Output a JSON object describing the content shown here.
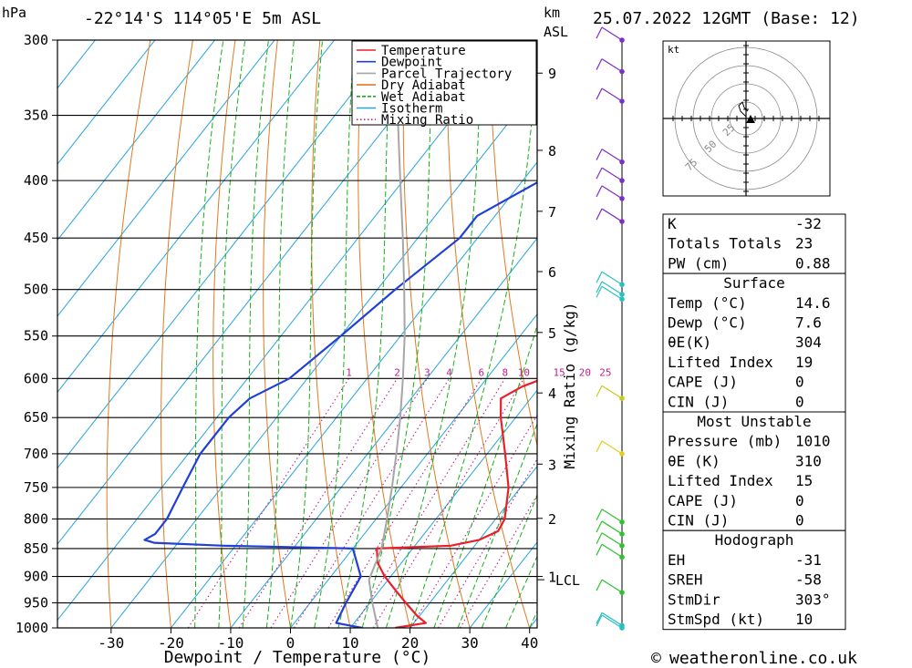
{
  "header": {
    "location": "-22°14'S 114°05'E 5m ASL",
    "datetime": "25.07.2022 12GMT (Base: 12)",
    "pressure_unit": "hPa",
    "height_unit": "km",
    "height_unit2": "ASL"
  },
  "chart_data": {
    "type": "line",
    "xlabel": "Dewpoint / Temperature (°C)",
    "ylabel_right": "Mixing Ratio (g/kg)",
    "xlim": [
      -40,
      40
    ],
    "x_ticks": [
      "-30",
      "-20",
      "-10",
      "0",
      "10",
      "20",
      "30",
      "40"
    ],
    "pressure_levels": [
      "300",
      "350",
      "400",
      "450",
      "500",
      "550",
      "600",
      "650",
      "700",
      "750",
      "800",
      "850",
      "900",
      "950",
      "1000"
    ],
    "height_ticks": [
      {
        "label": "9",
        "p": 321
      },
      {
        "label": "8",
        "p": 376
      },
      {
        "label": "7",
        "p": 426
      },
      {
        "label": "6",
        "p": 482
      },
      {
        "label": "5",
        "p": 546
      },
      {
        "label": "4",
        "p": 618
      },
      {
        "label": "3",
        "p": 715
      },
      {
        "label": "2",
        "p": 799
      },
      {
        "label": "1",
        "p": 900
      }
    ],
    "lcl_label": "LCL",
    "lcl_pressure": 906,
    "mixing_ratio_labels": [
      "1",
      "2",
      "3",
      "4",
      "6",
      "8",
      "10",
      "15",
      "20",
      "25"
    ],
    "legend": [
      {
        "name": "Temperature",
        "color": "#e8202a",
        "style": "solid"
      },
      {
        "name": "Dewpoint",
        "color": "#1f3fd6",
        "style": "solid"
      },
      {
        "name": "Parcel Trajectory",
        "color": "#a6a6a6",
        "style": "solid"
      },
      {
        "name": "Dry Adiabat",
        "color": "#e07a20",
        "style": "solid"
      },
      {
        "name": "Wet Adiabat",
        "color": "#18b018",
        "style": "dashed"
      },
      {
        "name": "Isotherm",
        "color": "#25a4e0",
        "style": "solid"
      },
      {
        "name": "Mixing Ratio",
        "color": "#c0208a",
        "style": "dotted"
      }
    ],
    "series": [
      {
        "name": "Temperature",
        "color": "#e8202a",
        "points": [
          [
            1000,
            17.5
          ],
          [
            990,
            22
          ],
          [
            975,
            19.5
          ],
          [
            950,
            16
          ],
          [
            925,
            12.5
          ],
          [
            900,
            9
          ],
          [
            875,
            6
          ],
          [
            850,
            4
          ],
          [
            845,
            16
          ],
          [
            835,
            20
          ],
          [
            820,
            22
          ],
          [
            800,
            21.5
          ],
          [
            750,
            18
          ],
          [
            700,
            13
          ],
          [
            650,
            7.5
          ],
          [
            625,
            5
          ],
          [
            610,
            7
          ],
          [
            600,
            9.5
          ],
          [
            550,
            6
          ],
          [
            500,
            0.5
          ],
          [
            450,
            -6
          ],
          [
            430,
            -7.5
          ],
          [
            400,
            -12
          ],
          [
            350,
            -22
          ],
          [
            300,
            -32
          ]
        ]
      },
      {
        "name": "Dewpoint",
        "color": "#1f3fd6",
        "points": [
          [
            1000,
            12
          ],
          [
            990,
            7
          ],
          [
            950,
            6
          ],
          [
            900,
            5
          ],
          [
            850,
            0
          ],
          [
            848,
            -8
          ],
          [
            845,
            -22
          ],
          [
            840,
            -34
          ],
          [
            835,
            -36
          ],
          [
            825,
            -35
          ],
          [
            800,
            -35
          ],
          [
            750,
            -36.5
          ],
          [
            700,
            -38
          ],
          [
            650,
            -38
          ],
          [
            625,
            -37
          ],
          [
            600,
            -33
          ],
          [
            550,
            -30
          ],
          [
            500,
            -27
          ],
          [
            450,
            -23
          ],
          [
            430,
            -23
          ],
          [
            400,
            -17
          ],
          [
            350,
            -12.5
          ],
          [
            320,
            -8
          ],
          [
            300,
            -9
          ]
        ]
      },
      {
        "name": "Parcel Trajectory",
        "color": "#a6a6a6",
        "points": [
          [
            1000,
            14.6
          ],
          [
            950,
            10.4
          ],
          [
            906,
            6.8
          ],
          [
            850,
            4.8
          ],
          [
            800,
            1.8
          ],
          [
            750,
            -1.5
          ],
          [
            700,
            -5.2
          ],
          [
            650,
            -9.3
          ],
          [
            600,
            -14
          ],
          [
            550,
            -19.3
          ],
          [
            500,
            -25.5
          ],
          [
            450,
            -32.5
          ],
          [
            400,
            -40.5
          ],
          [
            350,
            -49.5
          ],
          [
            300,
            -60
          ]
        ]
      }
    ]
  },
  "wind": {
    "barb_points": [
      {
        "p": 300,
        "color": "#7a2fc8"
      },
      {
        "p": 320,
        "color": "#7a2fc8"
      },
      {
        "p": 340,
        "color": "#7a2fc8"
      },
      {
        "p": 385,
        "color": "#7a2fc8"
      },
      {
        "p": 400,
        "color": "#7a2fc8"
      },
      {
        "p": 415,
        "color": "#7a2fc8"
      },
      {
        "p": 435,
        "color": "#7a2fc8"
      },
      {
        "p": 495,
        "color": "#2bc0c0"
      },
      {
        "p": 505,
        "color": "#2bc0c0"
      },
      {
        "p": 510,
        "color": "#2bc0c0"
      },
      {
        "p": 625,
        "color": "#c8c820"
      },
      {
        "p": 700,
        "color": "#e0d020"
      },
      {
        "p": 805,
        "color": "#30c030"
      },
      {
        "p": 825,
        "color": "#30c030"
      },
      {
        "p": 845,
        "color": "#30c030"
      },
      {
        "p": 865,
        "color": "#30c030"
      },
      {
        "p": 930,
        "color": "#30c030"
      },
      {
        "p": 995,
        "color": "#2bc0c0"
      },
      {
        "p": 1000,
        "color": "#2bc0c0"
      }
    ]
  },
  "hodograph": {
    "unit_label": "kt",
    "ring_labels": [
      "25",
      "50",
      "75"
    ]
  },
  "indices": {
    "general": [
      {
        "label": "K",
        "value": "-32"
      },
      {
        "label": "Totals Totals",
        "value": "23"
      },
      {
        "label": "PW (cm)",
        "value": "0.88"
      }
    ],
    "surface": {
      "title": "Surface",
      "rows": [
        {
          "label": "Temp (°C)",
          "value": "14.6"
        },
        {
          "label": "Dewp (°C)",
          "value": "7.6"
        },
        {
          "label": "θE(K)",
          "value": "304"
        },
        {
          "label": "Lifted Index",
          "value": "19"
        },
        {
          "label": "CAPE (J)",
          "value": "0"
        },
        {
          "label": "CIN (J)",
          "value": "0"
        }
      ]
    },
    "most_unstable": {
      "title": "Most Unstable",
      "rows": [
        {
          "label": "Pressure (mb)",
          "value": "1010"
        },
        {
          "label": "θE (K)",
          "value": "310"
        },
        {
          "label": "Lifted Index",
          "value": "15"
        },
        {
          "label": "CAPE (J)",
          "value": "0"
        },
        {
          "label": "CIN (J)",
          "value": "0"
        }
      ]
    },
    "hodograph": {
      "title": "Hodograph",
      "rows": [
        {
          "label": "EH",
          "value": "-31"
        },
        {
          "label": "SREH",
          "value": "-58"
        },
        {
          "label": "StmDir",
          "value": "303°"
        },
        {
          "label": "StmSpd (kt)",
          "value": "10"
        }
      ]
    }
  },
  "footer": {
    "copyright_symbol": "©",
    "site": "weatheronline.co.uk"
  }
}
